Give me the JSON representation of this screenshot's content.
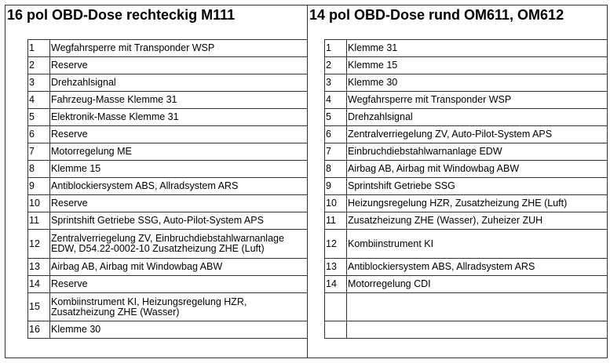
{
  "left": {
    "title": "16 pol OBD-Dose rechteckig M111",
    "rows": [
      {
        "n": "1",
        "t": "Wegfahrsperre mit Transponder WSP"
      },
      {
        "n": "2",
        "t": "Reserve"
      },
      {
        "n": "3",
        "t": "Drehzahlsignal"
      },
      {
        "n": "4",
        "t": "Fahrzeug-Masse Klemme 31"
      },
      {
        "n": "5",
        "t": "Elektronik-Masse Klemme 31"
      },
      {
        "n": "6",
        "t": "Reserve"
      },
      {
        "n": "7",
        "t": "Motorregelung ME"
      },
      {
        "n": "8",
        "t": "Klemme 15"
      },
      {
        "n": "9",
        "t": "Antiblockiersystem ABS, Allradsystem ARS"
      },
      {
        "n": "10",
        "t": "Reserve"
      },
      {
        "n": "11",
        "t": "Sprintshift Getriebe SSG, Auto-Pilot-System APS"
      },
      {
        "n": "12",
        "t": "Zentralverriegelung ZV, Einbruchdiebstahlwarnanlage EDW,   D54.22-0002-10 Zusatzheizung ZHE (Luft)"
      },
      {
        "n": "13",
        "t": "Airbag AB, Airbag mit Windowbag ABW"
      },
      {
        "n": "14",
        "t": "Reserve"
      },
      {
        "n": "15",
        "t": "Kombiinstrument KI, Heizungsregelung HZR, Zusatzheizung ZHE (Wasser)"
      },
      {
        "n": "16",
        "t": "Klemme 30"
      }
    ]
  },
  "right": {
    "title": "14 pol OBD-Dose rund OM611, OM612",
    "rows": [
      {
        "n": "1",
        "t": "Klemme 31"
      },
      {
        "n": "2",
        "t": "Klemme 15"
      },
      {
        "n": "3",
        "t": "Klemme 30"
      },
      {
        "n": "4",
        "t": "Wegfahrsperre mit Transponder WSP"
      },
      {
        "n": "5",
        "t": "Drehzahlsignal"
      },
      {
        "n": "6",
        "t": "Zentralverriegelung ZV, Auto-Pilot-System APS"
      },
      {
        "n": "7",
        "t": "Einbruchdiebstahlwarnanlage EDW"
      },
      {
        "n": "8",
        "t": "Airbag AB, Airbag mit Windowbag ABW"
      },
      {
        "n": "9",
        "t": "Sprintshift Getriebe SSG"
      },
      {
        "n": "10",
        "t": "Heizungsregelung HZR, Zusatzheizung ZHE (Luft)"
      },
      {
        "n": "11",
        "t": "Zusatzheizung ZHE (Wasser), Zuheizer ZUH"
      },
      {
        "n": "12",
        "t": "Kombiinstrument KI"
      },
      {
        "n": "13",
        "t": "Antiblockiersystem ABS, Allradsystem ARS"
      },
      {
        "n": "14",
        "t": "Motorregelung CDI"
      },
      {
        "n": "",
        "t": ""
      },
      {
        "n": "",
        "t": ""
      }
    ]
  }
}
